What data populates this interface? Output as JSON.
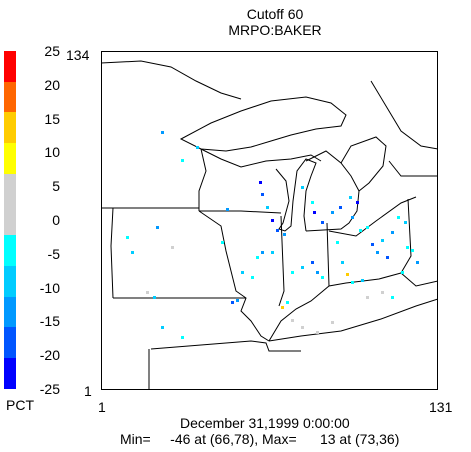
{
  "title": "Cutoff 60",
  "subtitle": "MRPO:BAKER",
  "legend": {
    "unit": "PCT",
    "labels": [
      "25",
      "20",
      "15",
      "10",
      "5",
      "0",
      "-5",
      "-10",
      "-15",
      "-20",
      "-25"
    ],
    "colors": [
      "#ff0000",
      "#ff6600",
      "#ffcc00",
      "#ffff00",
      "#d0d0d0",
      "#d0d0d0",
      "#00ffff",
      "#00ccff",
      "#0099ff",
      "#0055ff",
      "#0000ff"
    ]
  },
  "axes": {
    "x_min_label": "1",
    "x_max_label": "131",
    "y_min_label": "1",
    "y_max_label": "134"
  },
  "footer": {
    "date": "December 31,1999 0:00:00",
    "stats": "Min=     -46 at (66,78), Max=      13 at (73,36)"
  }
}
